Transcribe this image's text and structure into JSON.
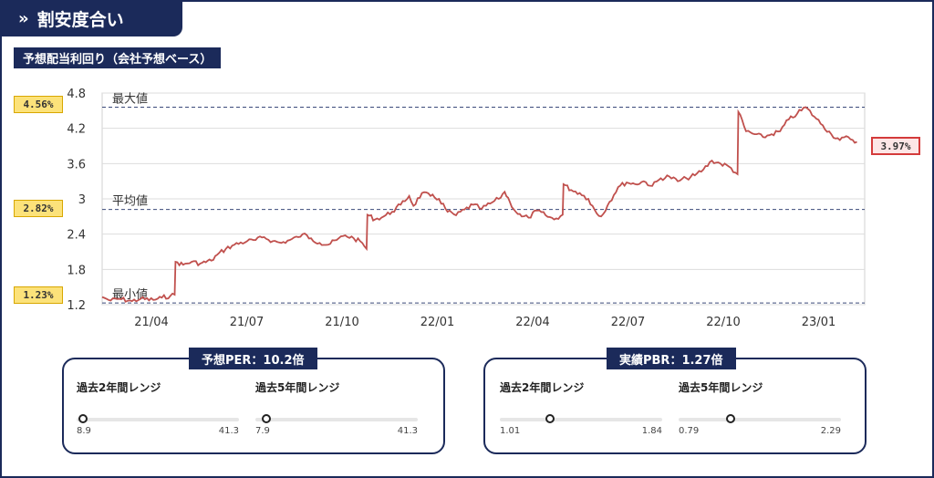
{
  "header": {
    "chevron": "»",
    "title": "割安度合い"
  },
  "subtitle": "予想配当利回り（会社予想ベース）",
  "chart_data": {
    "type": "line",
    "yticks": [
      "4.8",
      "4.2",
      "3.6",
      "3",
      "2.4",
      "1.8",
      "1.2"
    ],
    "ylim": [
      1.2,
      4.8
    ],
    "xticks": [
      "21/04",
      "21/07",
      "21/10",
      "22/01",
      "22/04",
      "22/07",
      "22/10",
      "23/01"
    ],
    "reference_lines": [
      {
        "name": "最大値",
        "value": 4.56,
        "badge": "4.56%"
      },
      {
        "name": "平均値",
        "value": 2.82,
        "badge": "2.82%"
      },
      {
        "name": "最小値",
        "value": 1.23,
        "badge": "1.23%"
      }
    ],
    "current": {
      "value": 3.97,
      "badge": "3.97%"
    },
    "series_color": "#c0504d",
    "series": [
      {
        "x": 0,
        "y": 1.33
      },
      {
        "x": 0.05,
        "y": 1.3
      },
      {
        "x": 0.1,
        "y": 1.27
      },
      {
        "x": 0.2,
        "y": 1.3
      },
      {
        "x": 0.35,
        "y": 1.26
      },
      {
        "x": 0.45,
        "y": 1.3
      },
      {
        "x": 0.6,
        "y": 1.28
      },
      {
        "x": 0.7,
        "y": 1.32
      },
      {
        "x": 0.8,
        "y": 1.35
      },
      {
        "x": 0.85,
        "y": 1.37
      },
      {
        "x": 0.86,
        "y": 1.93
      },
      {
        "x": 0.95,
        "y": 1.88
      },
      {
        "x": 1.05,
        "y": 1.93
      },
      {
        "x": 1.15,
        "y": 1.9
      },
      {
        "x": 1.28,
        "y": 1.95
      },
      {
        "x": 1.35,
        "y": 2.05
      },
      {
        "x": 1.45,
        "y": 2.15
      },
      {
        "x": 1.55,
        "y": 2.22
      },
      {
        "x": 1.7,
        "y": 2.28
      },
      {
        "x": 1.8,
        "y": 2.3
      },
      {
        "x": 1.9,
        "y": 2.35
      },
      {
        "x": 2.0,
        "y": 2.28
      },
      {
        "x": 2.1,
        "y": 2.25
      },
      {
        "x": 2.2,
        "y": 2.3
      },
      {
        "x": 2.3,
        "y": 2.35
      },
      {
        "x": 2.35,
        "y": 2.4
      },
      {
        "x": 2.45,
        "y": 2.33
      },
      {
        "x": 2.55,
        "y": 2.25
      },
      {
        "x": 2.65,
        "y": 2.22
      },
      {
        "x": 2.75,
        "y": 2.3
      },
      {
        "x": 2.85,
        "y": 2.38
      },
      {
        "x": 2.95,
        "y": 2.33
      },
      {
        "x": 3.05,
        "y": 2.25
      },
      {
        "x": 3.1,
        "y": 2.15
      },
      {
        "x": 3.11,
        "y": 2.73
      },
      {
        "x": 3.2,
        "y": 2.65
      },
      {
        "x": 3.3,
        "y": 2.7
      },
      {
        "x": 3.4,
        "y": 2.78
      },
      {
        "x": 3.5,
        "y": 2.9
      },
      {
        "x": 3.6,
        "y": 3.05
      },
      {
        "x": 3.65,
        "y": 2.88
      },
      {
        "x": 3.75,
        "y": 3.1
      },
      {
        "x": 3.85,
        "y": 3.05
      },
      {
        "x": 3.95,
        "y": 3.0
      },
      {
        "x": 4.05,
        "y": 2.78
      },
      {
        "x": 4.15,
        "y": 2.72
      },
      {
        "x": 4.25,
        "y": 2.82
      },
      {
        "x": 4.35,
        "y": 2.9
      },
      {
        "x": 4.45,
        "y": 2.83
      },
      {
        "x": 4.55,
        "y": 2.92
      },
      {
        "x": 4.65,
        "y": 3.0
      },
      {
        "x": 4.72,
        "y": 3.12
      },
      {
        "x": 4.78,
        "y": 2.95
      },
      {
        "x": 4.85,
        "y": 2.78
      },
      {
        "x": 4.92,
        "y": 2.7
      },
      {
        "x": 5.0,
        "y": 2.68
      },
      {
        "x": 5.1,
        "y": 2.8
      },
      {
        "x": 5.2,
        "y": 2.72
      },
      {
        "x": 5.3,
        "y": 2.65
      },
      {
        "x": 5.4,
        "y": 2.73
      },
      {
        "x": 5.41,
        "y": 3.25
      },
      {
        "x": 5.5,
        "y": 3.15
      },
      {
        "x": 5.6,
        "y": 3.1
      },
      {
        "x": 5.7,
        "y": 3.0
      },
      {
        "x": 5.8,
        "y": 2.75
      },
      {
        "x": 5.85,
        "y": 2.7
      },
      {
        "x": 5.95,
        "y": 2.95
      },
      {
        "x": 6.05,
        "y": 3.2
      },
      {
        "x": 6.15,
        "y": 3.28
      },
      {
        "x": 6.25,
        "y": 3.25
      },
      {
        "x": 6.35,
        "y": 3.3
      },
      {
        "x": 6.45,
        "y": 3.22
      },
      {
        "x": 6.55,
        "y": 3.35
      },
      {
        "x": 6.65,
        "y": 3.38
      },
      {
        "x": 6.75,
        "y": 3.3
      },
      {
        "x": 6.85,
        "y": 3.35
      },
      {
        "x": 6.95,
        "y": 3.4
      },
      {
        "x": 7.05,
        "y": 3.5
      },
      {
        "x": 7.15,
        "y": 3.65
      },
      {
        "x": 7.25,
        "y": 3.6
      },
      {
        "x": 7.35,
        "y": 3.55
      },
      {
        "x": 7.45,
        "y": 3.42
      },
      {
        "x": 7.46,
        "y": 4.48
      },
      {
        "x": 7.55,
        "y": 4.15
      },
      {
        "x": 7.65,
        "y": 4.1
      },
      {
        "x": 7.75,
        "y": 4.05
      },
      {
        "x": 7.85,
        "y": 4.1
      },
      {
        "x": 7.95,
        "y": 4.15
      },
      {
        "x": 8.05,
        "y": 4.35
      },
      {
        "x": 8.15,
        "y": 4.45
      },
      {
        "x": 8.25,
        "y": 4.56
      },
      {
        "x": 8.35,
        "y": 4.4
      },
      {
        "x": 8.45,
        "y": 4.25
      },
      {
        "x": 8.55,
        "y": 4.1
      },
      {
        "x": 8.65,
        "y": 4.0
      },
      {
        "x": 8.75,
        "y": 4.05
      },
      {
        "x": 8.85,
        "y": 3.97
      }
    ]
  },
  "panels": [
    {
      "title": "予想PER：10.2倍",
      "ranges": [
        {
          "label": "過去2年間レンジ",
          "min": "8.9",
          "max": "41.3",
          "position": 0.04
        },
        {
          "label": "過去5年間レンジ",
          "min": "7.9",
          "max": "41.3",
          "position": 0.07
        }
      ]
    },
    {
      "title": "実績PBR：1.27倍",
      "ranges": [
        {
          "label": "過去2年間レンジ",
          "min": "1.01",
          "max": "1.84",
          "position": 0.31
        },
        {
          "label": "過去5年間レンジ",
          "min": "0.79",
          "max": "2.29",
          "position": 0.32
        }
      ]
    }
  ]
}
